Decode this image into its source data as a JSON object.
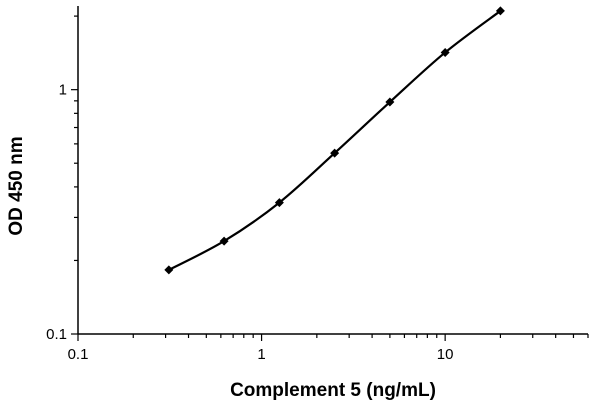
{
  "chart_data": {
    "type": "scatter",
    "xlabel": "Complement 5 (ng/mL)",
    "ylabel": "OD 450 nm",
    "x_scale": "log",
    "y_scale": "log",
    "xlim": [
      0.1,
      60
    ],
    "ylim": [
      0.1,
      2.2
    ],
    "x_ticks": [
      {
        "value": 0.1,
        "label": "0.1"
      },
      {
        "value": 1,
        "label": "1"
      },
      {
        "value": 10,
        "label": "10"
      }
    ],
    "y_ticks": [
      {
        "value": 0.1,
        "label": "0.1"
      },
      {
        "value": 1,
        "label": "1"
      }
    ],
    "grid": false,
    "legend": "none",
    "series": [
      {
        "points": [
          {
            "x": 0.3125,
            "y": 0.183
          },
          {
            "x": 0.625,
            "y": 0.24
          },
          {
            "x": 1.25,
            "y": 0.345
          },
          {
            "x": 2.5,
            "y": 0.55
          },
          {
            "x": 5,
            "y": 0.89
          },
          {
            "x": 10,
            "y": 1.42
          },
          {
            "x": 20,
            "y": 2.1
          }
        ],
        "fit": "4PL curve",
        "color": "#000000"
      }
    ]
  }
}
